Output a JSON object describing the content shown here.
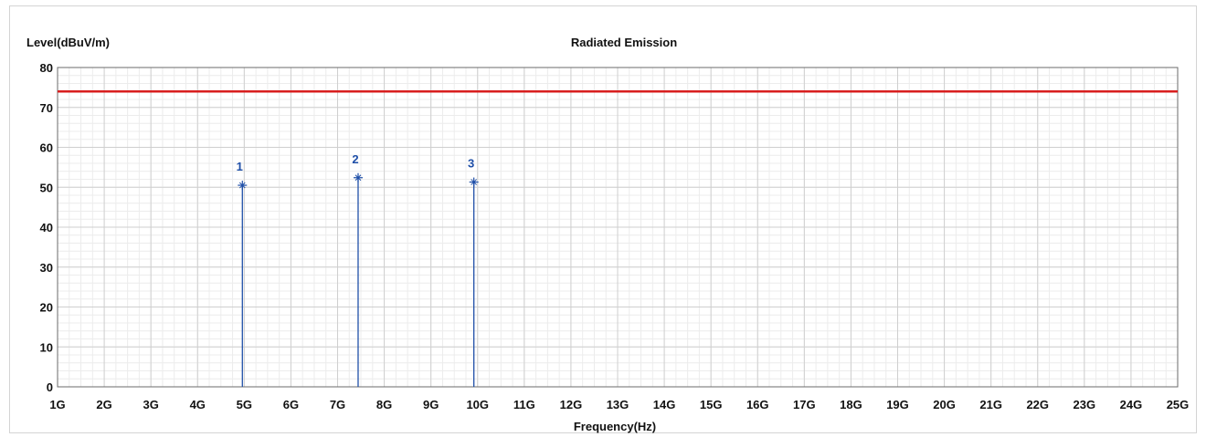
{
  "chart_data": {
    "type": "line",
    "title": "Radiated Emission",
    "ylabel": "Level(dBuV/m)",
    "xlabel": "Frequency(Hz)",
    "xlim": [
      1,
      25
    ],
    "ylim": [
      0,
      80
    ],
    "x_unit": "GHz",
    "x_ticks": [
      "1G",
      "2G",
      "3G",
      "4G",
      "5G",
      "6G",
      "7G",
      "8G",
      "9G",
      "10G",
      "11G",
      "12G",
      "13G",
      "14G",
      "15G",
      "16G",
      "17G",
      "18G",
      "19G",
      "20G",
      "21G",
      "22G",
      "23G",
      "24G",
      "25G"
    ],
    "y_ticks": [
      "0",
      "10",
      "20",
      "30",
      "40",
      "50",
      "60",
      "70",
      "80"
    ],
    "grid": true,
    "series": [
      {
        "type": "limit_line",
        "color": "#d81e1e",
        "values": [
          74,
          74
        ],
        "x": [
          1,
          25
        ]
      }
    ],
    "markers": [
      {
        "label": "1",
        "x": 4.96,
        "y": 50.5
      },
      {
        "label": "2",
        "x": 7.44,
        "y": 52.4
      },
      {
        "label": "3",
        "x": 9.92,
        "y": 51.3
      }
    ],
    "marker_color": "#1f4fa8"
  }
}
